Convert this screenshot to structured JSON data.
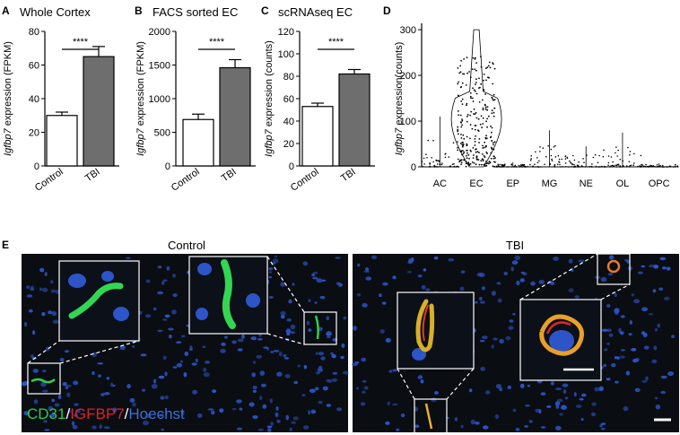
{
  "panels": {
    "a": {
      "letter": "A",
      "title": "Whole Cortex",
      "ylabel_italic": "Igfbp7",
      "ylabel_rest": " expression (FPKM)",
      "significance": "****"
    },
    "b": {
      "letter": "B",
      "title": "FACS sorted EC",
      "ylabel_italic": "Igfbp7",
      "ylabel_rest": " expression (FPKM)",
      "significance": "****"
    },
    "c": {
      "letter": "C",
      "title": "scRNAseq EC",
      "ylabel_italic": "Igfbp7",
      "ylabel_rest": " expression (counts)",
      "significance": "****"
    },
    "d": {
      "letter": "D",
      "ylabel_italic": "Igfbp7",
      "ylabel_rest": " expression(counts)"
    },
    "e": {
      "letter": "E",
      "left_label": "Control",
      "right_label": "TBI",
      "legend_parts": [
        {
          "text": "CD31",
          "color": "#2ec94a"
        },
        {
          "text": "/",
          "color": "#ffffff"
        },
        {
          "text": "IGFBP7",
          "color": "#e0202a"
        },
        {
          "text": "/",
          "color": "#ffffff"
        },
        {
          "text": "Hoechst",
          "color": "#3a6fd8"
        }
      ]
    }
  },
  "colors": {
    "control_bar": "#ffffff",
    "tbi_bar": "#6e6e6e",
    "micrograph_bg": "#0a0d12",
    "nuclei": "#2d55c8",
    "cd31": "#30d050",
    "igfbp7": "#e02525"
  },
  "chart_data": [
    {
      "type": "bar",
      "panel": "A",
      "title": "Whole Cortex",
      "ylabel": "Igfbp7 expression (FPKM)",
      "categories": [
        "Control",
        "TBI"
      ],
      "values": [
        30,
        65
      ],
      "errors": [
        2,
        6
      ],
      "ylim": [
        0,
        80
      ],
      "yticks": [
        0,
        20,
        40,
        60,
        80
      ],
      "significance": "****"
    },
    {
      "type": "bar",
      "panel": "B",
      "title": "FACS sorted EC",
      "ylabel": "Igfbp7 expression (FPKM)",
      "categories": [
        "Control",
        "TBI"
      ],
      "values": [
        690,
        1460
      ],
      "errors": [
        80,
        120
      ],
      "ylim": [
        0,
        2000
      ],
      "yticks": [
        0,
        500,
        1000,
        1500,
        2000
      ],
      "significance": "****"
    },
    {
      "type": "bar",
      "panel": "C",
      "title": "scRNAseq EC",
      "ylabel": "Igfbp7 expression (counts)",
      "categories": [
        "Control",
        "TBI"
      ],
      "values": [
        53,
        82
      ],
      "errors": [
        3,
        4
      ],
      "ylim": [
        0,
        120
      ],
      "yticks": [
        0,
        20,
        40,
        60,
        80,
        100,
        120
      ],
      "significance": "****"
    },
    {
      "type": "scatter",
      "panel": "D",
      "ylabel": "Igfbp7 expression(counts)",
      "categories": [
        "AC",
        "EC",
        "EP",
        "MG",
        "NE",
        "OL",
        "OPC"
      ],
      "max_values": [
        110,
        300,
        10,
        80,
        45,
        75,
        8
      ],
      "ylim": [
        0,
        310
      ],
      "yticks": [
        0,
        100,
        200,
        300
      ]
    }
  ]
}
